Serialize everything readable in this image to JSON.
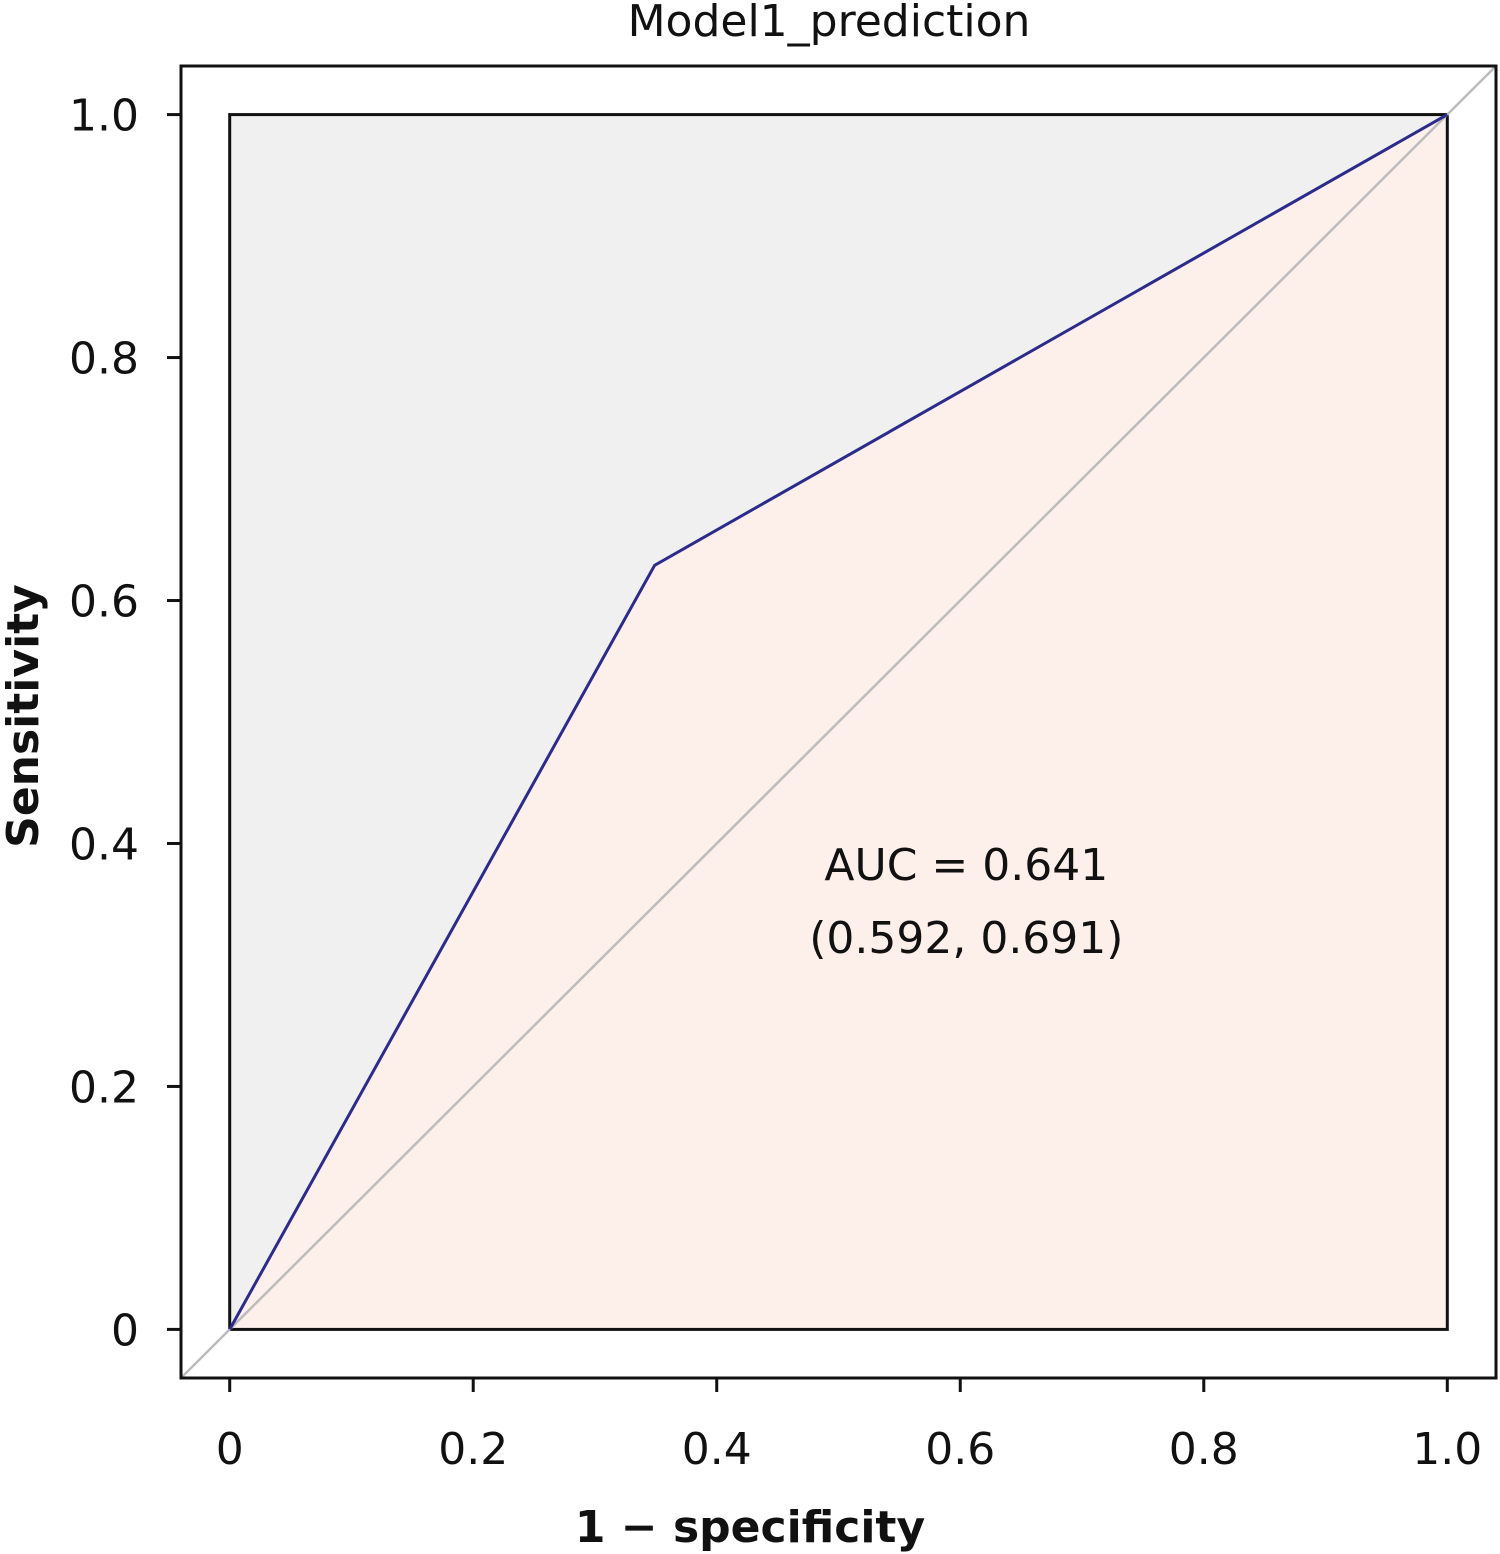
{
  "chart_data": {
    "type": "line",
    "title": "Model1_prediction",
    "xlabel": "1 − specificity",
    "ylabel": "Sensitivity",
    "xlim": [
      -0.04,
      1.04
    ],
    "ylim": [
      -0.04,
      1.04
    ],
    "x_ticks": [
      0,
      0.2,
      0.4,
      0.6,
      0.8,
      1.0
    ],
    "x_tick_labels": [
      "0",
      "0.2",
      "0.4",
      "0.6",
      "0.8",
      "1.0"
    ],
    "y_ticks": [
      0,
      0.2,
      0.4,
      0.6,
      0.8,
      1.0
    ],
    "y_tick_labels": [
      "0",
      "0.2",
      "0.4",
      "0.6",
      "0.8",
      "1.0"
    ],
    "grid": false,
    "legend": "none",
    "series": [
      {
        "x": [
          0,
          0.349,
          1.0
        ],
        "y": [
          0,
          0.629,
          1.0
        ],
        "color": "#2b2b8c",
        "fill_below": "#fdefea"
      }
    ],
    "reference_line": {
      "x": [
        -0.04,
        1.04
      ],
      "y": [
        -0.04,
        1.04
      ],
      "color": "#bcbcbc"
    },
    "unit_square": {
      "x": [
        0,
        1
      ],
      "y": [
        0,
        1
      ],
      "fill": "#f0f0f0",
      "stroke": "#111111"
    },
    "annotations": [
      {
        "text": "AUC = 0.641",
        "x": 0.605,
        "y": 0.37
      },
      {
        "text": "(0.592, 0.691)",
        "x": 0.605,
        "y": 0.31
      }
    ]
  }
}
